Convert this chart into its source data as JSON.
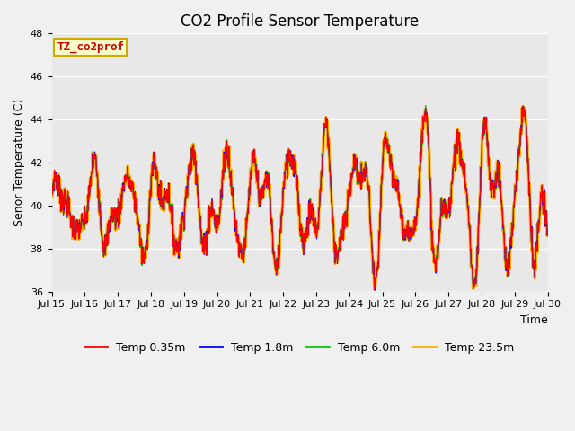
{
  "title": "CO2 Profile Sensor Temperature",
  "xlabel": "Time",
  "ylabel": "Senor Temperature (C)",
  "legend_label": "TZ_co2prof",
  "ylim": [
    36,
    48
  ],
  "yticks": [
    36,
    38,
    40,
    42,
    44,
    46,
    48
  ],
  "date_labels": [
    "Jul 15",
    "Jul 16",
    "Jul 17",
    "Jul 18",
    "Jul 19",
    "Jul 20",
    "Jul 21",
    "Jul 22",
    "Jul 23",
    "Jul 24",
    "Jul 25",
    "Jul 26",
    "Jul 27",
    "Jul 28",
    "Jul 29",
    "Jul 30"
  ],
  "colors": {
    "Temp 0.35m": "#ff0000",
    "Temp 1.8m": "#0000ff",
    "Temp 6.0m": "#00cc00",
    "Temp 23.5m": "#ffaa00"
  },
  "linewidths": {
    "Temp 0.35m": 0.8,
    "Temp 1.8m": 0.8,
    "Temp 6.0m": 0.8,
    "Temp 23.5m": 2.5
  },
  "plot_bg_color": "#e8e8e8",
  "fig_bg_color": "#f0f0f0",
  "legend_box_facecolor": "#ffffcc",
  "legend_box_edgecolor": "#ccaa00",
  "title_fontsize": 12,
  "label_fontsize": 9,
  "tick_fontsize": 8
}
